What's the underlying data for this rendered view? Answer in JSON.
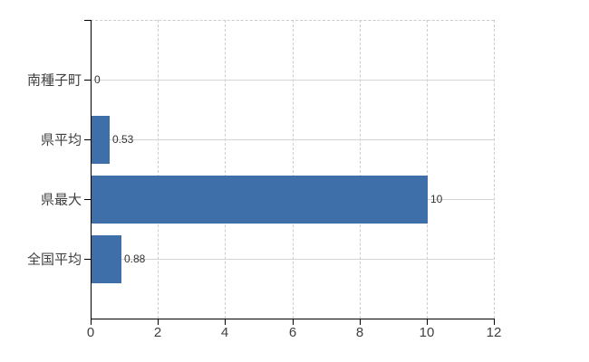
{
  "chart_data": {
    "type": "bar",
    "orientation": "horizontal",
    "title": "",
    "xlabel": "",
    "ylabel": "",
    "categories": [
      "南種子町",
      "県平均",
      "県最大",
      "全国平均"
    ],
    "values": [
      0,
      0.53,
      10,
      0.88
    ],
    "value_labels": [
      "0",
      "0.53",
      "10",
      "0.88"
    ],
    "xlim": [
      0,
      12
    ],
    "x_ticks": [
      0,
      2,
      4,
      6,
      8,
      10,
      12
    ],
    "grid": true,
    "legend": false,
    "colors": {
      "bar": "#3f6fa8",
      "axis": "#000000",
      "horizontal_grid": "#d4d4d4",
      "vertical_grid_dashed": "#cccccc",
      "label": "#404040",
      "background": "#ffffff"
    }
  }
}
